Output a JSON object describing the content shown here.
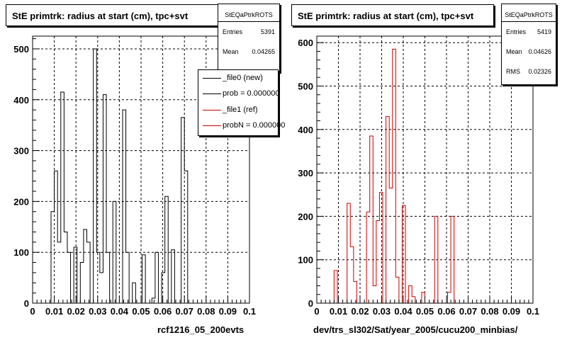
{
  "chart_data": [
    {
      "type": "histogram",
      "title": "StE primtrk: radius at start (cm), tpc+svt",
      "xlabel": "rcf1216_05_200evts",
      "xlim": [
        0,
        0.1
      ],
      "ylim": [
        0,
        525
      ],
      "x_ticks": [
        0,
        0.01,
        0.02,
        0.03,
        0.04,
        0.05,
        0.06,
        0.07,
        0.08,
        0.09,
        0.1
      ],
      "x_tick_labels": [
        "0",
        "0.01",
        "0.02",
        "0.03",
        "0.04",
        "0.05",
        "0.06",
        "0.07",
        "0.08",
        "0.09",
        "0.1"
      ],
      "y_ticks": [
        0,
        100,
        200,
        300,
        400,
        500
      ],
      "y_tick_labels": [
        "0",
        "100",
        "200",
        "300",
        "400",
        "500"
      ],
      "grid": true,
      "bins": [
        0.0085,
        0.01,
        0.0115,
        0.013,
        0.0145,
        0.016,
        0.0175,
        0.019,
        0.0205,
        0.022,
        0.0235,
        0.025,
        0.0265,
        0.028,
        0.0295,
        0.031,
        0.0325,
        0.034,
        0.0355,
        0.037,
        0.0385,
        0.04,
        0.0415,
        0.043,
        0.0445,
        0.046,
        0.0475,
        0.049,
        0.0505,
        0.052,
        0.0535,
        0.055,
        0.0565,
        0.058,
        0.0595,
        0.061,
        0.0625,
        0.064,
        0.0655,
        0.067,
        0.0685,
        0.07,
        0.0715,
        0.073,
        0.0745,
        0.076,
        0.0775,
        0.079,
        0.0805,
        0.082,
        0.0835,
        0.085,
        0.0865,
        0.088,
        0.0895,
        0.091,
        0.0925,
        0.094,
        0.0955,
        0.097,
        0.0985,
        0.1
      ],
      "series": [
        {
          "name": "_file0 (new)",
          "color": "#000000",
          "values": [
            180,
            260,
            120,
            415,
            140,
            100,
            0,
            110,
            0,
            80,
            145,
            120,
            0,
            500,
            100,
            60,
            410,
            100,
            0,
            200,
            0,
            0,
            380,
            100,
            0,
            40,
            0,
            0,
            95,
            0,
            0,
            10,
            100,
            0,
            60,
            210,
            0,
            105,
            0,
            0,
            365,
            260,
            0,
            0,
            0,
            0,
            0,
            0,
            0,
            0,
            0,
            0,
            0,
            0,
            0,
            0,
            0,
            0,
            0,
            0,
            0
          ]
        },
        {
          "name": "_file1 (ref)",
          "color": "#cc0000",
          "values": [
            0,
            0,
            0,
            0,
            0,
            0,
            0,
            0,
            0,
            0,
            0,
            0,
            0,
            0,
            0,
            0,
            0,
            0,
            0,
            0,
            0,
            0,
            0,
            0,
            0,
            0,
            0,
            0,
            0,
            0,
            0,
            0,
            0,
            0,
            0,
            0,
            0,
            0,
            0,
            0,
            0,
            0,
            0,
            0,
            0,
            0,
            0,
            0,
            0,
            0,
            0,
            0,
            0,
            0,
            0,
            0,
            0,
            0,
            0,
            0,
            0
          ]
        }
      ],
      "stats": {
        "name": "StEQaPtrkROTS",
        "entries_label": "Entries",
        "entries": "5391",
        "mean_label": "Mean",
        "mean": "0.04265"
      },
      "legend": {
        "placement": "top-right",
        "entries": [
          "_file0 (new)",
          "prob = 0.000000",
          "_file1 (ref)",
          "probN = 0.000000"
        ]
      }
    },
    {
      "type": "histogram",
      "title": "StE primtrk: radius at start (cm), tpc+svt",
      "xlabel": "dev/trs_sl302/Sat/year_2005/cucu200_minbias/",
      "xlim": [
        0,
        0.1
      ],
      "ylim": [
        0,
        615
      ],
      "x_ticks": [
        0,
        0.01,
        0.02,
        0.03,
        0.04,
        0.05,
        0.06,
        0.07,
        0.08,
        0.09,
        0.1
      ],
      "x_tick_labels": [
        "0",
        "0.01",
        "0.02",
        "0.03",
        "0.04",
        "0.05",
        "0.06",
        "0.07",
        "0.08",
        "0.09",
        "0.1"
      ],
      "y_ticks": [
        0,
        100,
        200,
        300,
        400,
        500,
        600
      ],
      "y_tick_labels": [
        "0",
        "100",
        "200",
        "300",
        "400",
        "500",
        "600"
      ],
      "grid": true,
      "bins": [
        0.0065,
        0.008,
        0.0095,
        0.011,
        0.0125,
        0.014,
        0.0155,
        0.017,
        0.0185,
        0.02,
        0.0215,
        0.023,
        0.0245,
        0.026,
        0.0275,
        0.029,
        0.0305,
        0.032,
        0.0335,
        0.035,
        0.0365,
        0.038,
        0.0395,
        0.041,
        0.0425,
        0.044,
        0.0455,
        0.047,
        0.0485,
        0.05,
        0.0515,
        0.053,
        0.0545,
        0.056,
        0.0575,
        0.059,
        0.0605,
        0.062,
        0.0635,
        0.065,
        0.0665,
        0.068,
        0.0695,
        0.071,
        0.0725,
        0.074,
        0.0755,
        0.077,
        0.0785,
        0.08,
        0.0815,
        0.083,
        0.0845,
        0.086,
        0.0875,
        0.089,
        0.0905,
        0.092,
        0.0935,
        0.095,
        0.0965,
        0.098,
        0.0995
      ],
      "series": [
        {
          "name": "cucu200_minbias",
          "color": "#cc0000",
          "values": [
            0,
            75,
            0,
            0,
            0,
            230,
            130,
            50,
            0,
            0,
            0,
            210,
            385,
            40,
            190,
            255,
            0,
            430,
            265,
            585,
            60,
            0,
            225,
            0,
            40,
            15,
            0,
            0,
            25,
            0,
            0,
            0,
            200,
            0,
            0,
            0,
            25,
            200,
            0,
            0,
            0,
            0,
            0,
            0,
            0,
            0,
            0,
            0,
            0,
            0,
            0,
            0,
            0,
            0,
            0,
            0,
            0,
            0,
            0,
            0,
            0,
            0
          ]
        }
      ],
      "stats": {
        "name": "StEQaPtrkROTS",
        "entries_label": "Entries",
        "entries": "5419",
        "mean_label": "Mean",
        "mean": "0.04626",
        "rms_label": "RMS",
        "rms": "0.02326"
      }
    }
  ]
}
